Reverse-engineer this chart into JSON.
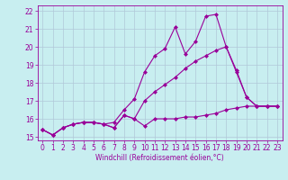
{
  "x": [
    0,
    1,
    2,
    3,
    4,
    5,
    6,
    7,
    8,
    9,
    10,
    11,
    12,
    13,
    14,
    15,
    16,
    17,
    18,
    19,
    20,
    21,
    22,
    23
  ],
  "series1": [
    15.4,
    15.1,
    15.5,
    15.7,
    15.8,
    15.8,
    15.7,
    15.5,
    16.2,
    16.0,
    15.6,
    16.0,
    16.0,
    16.0,
    16.1,
    16.1,
    16.2,
    16.3,
    16.5,
    16.6,
    16.7,
    16.7,
    16.7,
    16.7
  ],
  "series2": [
    15.4,
    15.1,
    15.5,
    15.7,
    15.8,
    15.8,
    15.7,
    15.8,
    16.5,
    17.1,
    18.6,
    19.5,
    19.9,
    21.1,
    19.6,
    20.3,
    21.7,
    21.8,
    20.0,
    18.7,
    17.2,
    16.7,
    16.7,
    16.7
  ],
  "series3": [
    15.4,
    15.1,
    15.5,
    15.7,
    15.8,
    15.8,
    15.7,
    15.5,
    16.2,
    16.0,
    17.0,
    17.5,
    17.9,
    18.3,
    18.8,
    19.2,
    19.5,
    19.8,
    20.0,
    18.6,
    17.2,
    16.7,
    16.7,
    16.7
  ],
  "line_color": "#990099",
  "bg_color": "#c8eef0",
  "grid_color": "#b0c8d8",
  "xlabel": "Windchill (Refroidissement éolien,°C)",
  "ylim": [
    14.8,
    22.3
  ],
  "xlim": [
    -0.5,
    23.5
  ],
  "yticks": [
    15,
    16,
    17,
    18,
    19,
    20,
    21,
    22
  ],
  "xticks": [
    0,
    1,
    2,
    3,
    4,
    5,
    6,
    7,
    8,
    9,
    10,
    11,
    12,
    13,
    14,
    15,
    16,
    17,
    18,
    19,
    20,
    21,
    22,
    23
  ],
  "marker": "D",
  "markersize": 2.0,
  "linewidth": 0.8,
  "tick_fontsize": 5.5,
  "xlabel_fontsize": 5.5
}
